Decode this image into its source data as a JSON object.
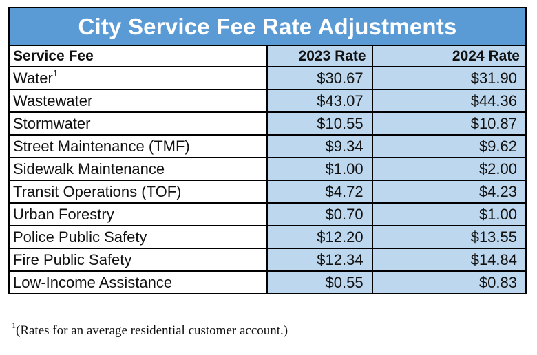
{
  "table": {
    "title": "City Service Fee Rate Adjustments",
    "headers": {
      "service": "Service Fee",
      "rate_2023": "2023 Rate",
      "rate_2024": "2024 Rate"
    },
    "rows": [
      {
        "service": "Water",
        "note": "1",
        "rate_2023": "$30.67",
        "rate_2024": "$31.90"
      },
      {
        "service": "Wastewater",
        "rate_2023": "$43.07",
        "rate_2024": "$44.36"
      },
      {
        "service": "Stormwater",
        "rate_2023": "$10.55",
        "rate_2024": "$10.87"
      },
      {
        "service": "Street Maintenance (TMF)",
        "rate_2023": "$9.34",
        "rate_2024": "$9.62"
      },
      {
        "service": "Sidewalk Maintenance",
        "rate_2023": "$1.00",
        "rate_2024": "$2.00"
      },
      {
        "service": "Transit Operations (TOF)",
        "rate_2023": "$4.72",
        "rate_2024": "$4.23"
      },
      {
        "service": "Urban Forestry",
        "rate_2023": "$0.70",
        "rate_2024": "$1.00"
      },
      {
        "service": "Police Public Safety",
        "rate_2023": "$12.20",
        "rate_2024": "$13.55"
      },
      {
        "service": "Fire Public Safety",
        "rate_2023": "$12.34",
        "rate_2024": "$14.84"
      },
      {
        "service": "Low-Income Assistance",
        "rate_2023": "$0.55",
        "rate_2024": "$0.83"
      }
    ]
  },
  "footnote": {
    "marker": "1",
    "text": "(Rates for an average residential customer account.)"
  },
  "colors": {
    "title_background": "#5b9bd5",
    "rate_background": "#bdd7ee",
    "border": "#000000"
  }
}
